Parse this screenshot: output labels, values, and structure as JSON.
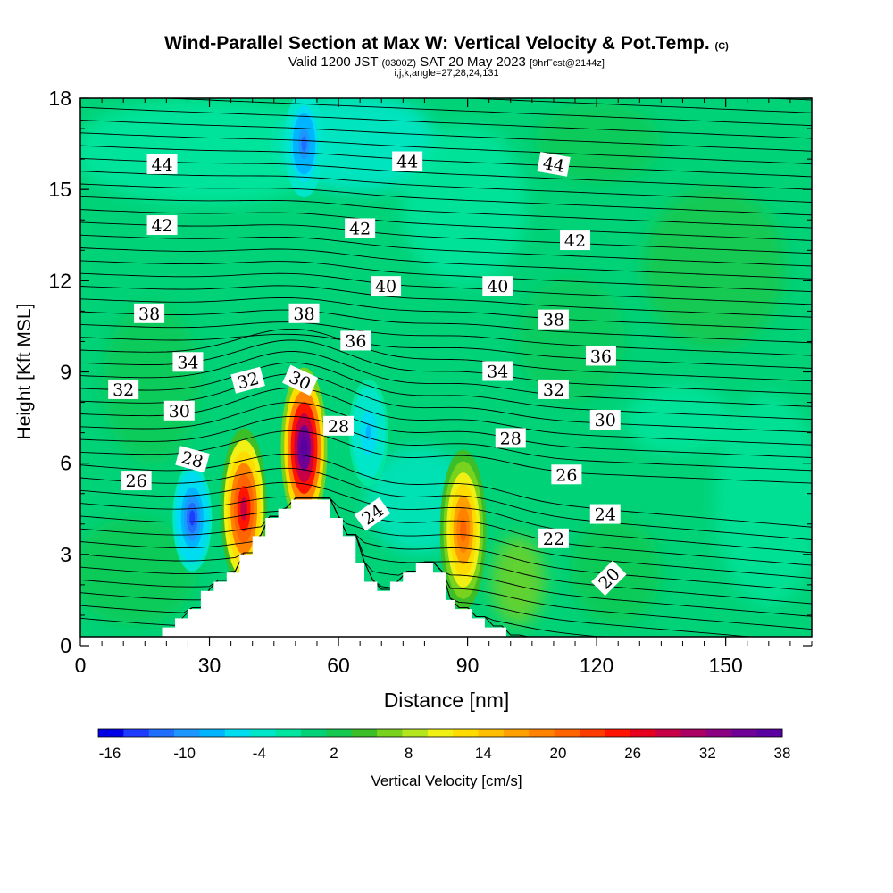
{
  "title": {
    "main": "Wind-Parallel Section at Max W: Vertical Velocity & Pot.Temp.",
    "copyright": "(C)",
    "valid_prefix": "Valid 1200 JST",
    "valid_utc": "(0300Z)",
    "valid_date": "SAT 20 May 2023",
    "forecast": "[9hrFcst@2144z]",
    "indices": "i,j,k,angle=27,28,24,131"
  },
  "chart_data": {
    "type": "heatmap",
    "xlabel": "Distance [nm]",
    "ylabel": "Height [Kft MSL]",
    "xlim": [
      0,
      170
    ],
    "ylim": [
      0,
      18
    ],
    "x_ticks": [
      0,
      30,
      60,
      90,
      120,
      150
    ],
    "y_ticks": [
      0,
      3,
      6,
      9,
      12,
      15,
      18
    ],
    "colorbar": {
      "label": "Vertical Velocity [cm/s]",
      "tick_labels": [
        -16,
        -10,
        -4,
        2,
        8,
        14,
        20,
        26,
        32,
        38
      ],
      "levels": [
        -16,
        -14,
        -12,
        -10,
        -8,
        -6,
        -4,
        -2,
        0,
        2,
        4,
        6,
        8,
        10,
        12,
        14,
        16,
        18,
        20,
        22,
        24,
        26,
        28,
        30,
        32,
        34,
        36,
        38
      ],
      "colors": [
        "#0000e6",
        "#1e3cff",
        "#1e6eff",
        "#1e96ff",
        "#00b4ff",
        "#00dcf0",
        "#00e6c8",
        "#00e6a0",
        "#00d278",
        "#14c850",
        "#3cbe28",
        "#78d21e",
        "#b4e61e",
        "#f0f014",
        "#ffdc00",
        "#ffbe00",
        "#ffa000",
        "#ff8200",
        "#ff6400",
        "#ff3c00",
        "#ff1400",
        "#e6001e",
        "#c80046",
        "#aa0064",
        "#8c0082",
        "#6e0096",
        "#5a00a0"
      ]
    },
    "velocity_features": [
      {
        "x": 38,
        "y": 4.5,
        "w": 30,
        "kind": "updraft"
      },
      {
        "x": 52,
        "y": 6.5,
        "w": 40,
        "kind": "updraft"
      },
      {
        "x": 89,
        "y": 3.8,
        "w": 22,
        "kind": "updraft"
      },
      {
        "x": 26,
        "y": 4.2,
        "w": -12,
        "kind": "downdraft"
      },
      {
        "x": 52,
        "y": 16.5,
        "w": -10,
        "kind": "downdraft"
      },
      {
        "x": 67,
        "y": 7.0,
        "w": -6,
        "kind": "downdraft"
      }
    ],
    "terrain": [
      [
        0,
        0
      ],
      [
        16,
        0
      ],
      [
        16,
        0.3
      ],
      [
        19,
        0.3
      ],
      [
        19,
        0.6
      ],
      [
        22,
        0.6
      ],
      [
        22,
        0.9
      ],
      [
        25,
        0.9
      ],
      [
        25,
        1.2
      ],
      [
        28,
        1.2
      ],
      [
        28,
        1.8
      ],
      [
        31,
        1.8
      ],
      [
        31,
        2.1
      ],
      [
        34,
        2.1
      ],
      [
        34,
        2.4
      ],
      [
        37,
        2.4
      ],
      [
        37,
        3.0
      ],
      [
        40,
        3.0
      ],
      [
        40,
        3.6
      ],
      [
        43,
        3.6
      ],
      [
        43,
        4.2
      ],
      [
        46,
        4.2
      ],
      [
        46,
        4.5
      ],
      [
        49,
        4.5
      ],
      [
        49,
        4.8
      ],
      [
        58,
        4.8
      ],
      [
        58,
        4.2
      ],
      [
        61,
        4.2
      ],
      [
        61,
        3.6
      ],
      [
        64,
        3.6
      ],
      [
        64,
        2.7
      ],
      [
        66,
        2.7
      ],
      [
        66,
        2.1
      ],
      [
        69,
        2.1
      ],
      [
        69,
        1.8
      ],
      [
        72,
        1.8
      ],
      [
        72,
        2.1
      ],
      [
        75,
        2.1
      ],
      [
        75,
        2.4
      ],
      [
        78,
        2.4
      ],
      [
        78,
        2.7
      ],
      [
        82,
        2.7
      ],
      [
        82,
        2.4
      ],
      [
        85,
        2.4
      ],
      [
        85,
        1.5
      ],
      [
        87,
        1.5
      ],
      [
        87,
        1.2
      ],
      [
        91,
        1.2
      ],
      [
        91,
        0.9
      ],
      [
        94,
        0.9
      ],
      [
        94,
        0.6
      ],
      [
        99,
        0.6
      ],
      [
        99,
        0.3
      ],
      [
        102,
        0.3
      ],
      [
        102,
        0
      ],
      [
        170,
        0
      ]
    ],
    "theta_labels": [
      {
        "x": 19,
        "y": 15.8,
        "v": "44"
      },
      {
        "x": 76,
        "y": 15.9,
        "v": "44"
      },
      {
        "x": 110,
        "y": 15.8,
        "v": "44",
        "rot": 10
      },
      {
        "x": 19,
        "y": 13.8,
        "v": "42"
      },
      {
        "x": 65,
        "y": 13.7,
        "v": "42"
      },
      {
        "x": 115,
        "y": 13.3,
        "v": "42"
      },
      {
        "x": 71,
        "y": 11.8,
        "v": "40"
      },
      {
        "x": 97,
        "y": 11.8,
        "v": "40"
      },
      {
        "x": 16,
        "y": 10.9,
        "v": "38"
      },
      {
        "x": 52,
        "y": 10.9,
        "v": "38"
      },
      {
        "x": 110,
        "y": 10.7,
        "v": "38"
      },
      {
        "x": 64,
        "y": 10.0,
        "v": "36"
      },
      {
        "x": 121,
        "y": 9.5,
        "v": "36"
      },
      {
        "x": 25,
        "y": 9.3,
        "v": "34"
      },
      {
        "x": 97,
        "y": 9.0,
        "v": "34"
      },
      {
        "x": 10,
        "y": 8.4,
        "v": "32"
      },
      {
        "x": 39,
        "y": 8.7,
        "v": "32",
        "rot": -15
      },
      {
        "x": 110,
        "y": 8.4,
        "v": "32"
      },
      {
        "x": 23,
        "y": 7.7,
        "v": "30"
      },
      {
        "x": 51,
        "y": 8.7,
        "v": "30",
        "rot": 25
      },
      {
        "x": 122,
        "y": 7.4,
        "v": "30"
      },
      {
        "x": 60,
        "y": 7.2,
        "v": "28"
      },
      {
        "x": 100,
        "y": 6.8,
        "v": "28"
      },
      {
        "x": 26,
        "y": 6.1,
        "v": "28",
        "rot": 15
      },
      {
        "x": 13,
        "y": 5.4,
        "v": "26"
      },
      {
        "x": 113,
        "y": 5.6,
        "v": "26"
      },
      {
        "x": 68,
        "y": 4.3,
        "v": "24",
        "rot": -35
      },
      {
        "x": 122,
        "y": 4.3,
        "v": "24"
      },
      {
        "x": 110,
        "y": 3.5,
        "v": "22"
      },
      {
        "x": 123,
        "y": 2.2,
        "v": "20",
        "rot": -45
      }
    ]
  }
}
